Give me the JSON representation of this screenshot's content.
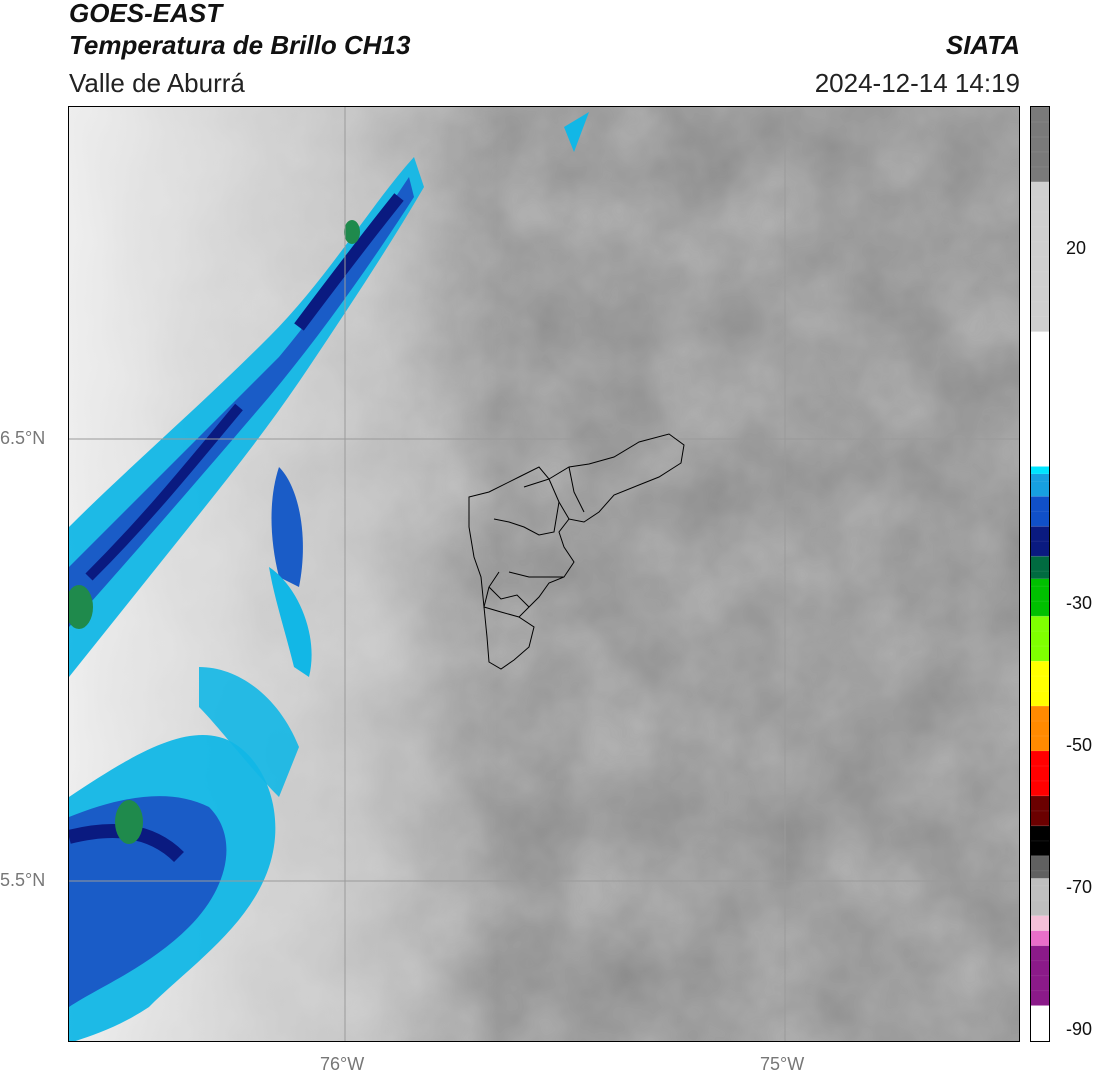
{
  "header": {
    "satellite": "GOES-EAST",
    "product": "Temperatura de Brillo CH13",
    "region": "Valle de Aburrá",
    "agency": "SIATA",
    "timestamp": "2024-12-14 14:19"
  },
  "map": {
    "lat_labels": [
      "6.5°N",
      "5.5°N"
    ],
    "lon_labels": [
      "76°W",
      "75°W"
    ]
  },
  "colorbar": {
    "tick_labels": [
      "20",
      "-30",
      "-50",
      "-70",
      "-90"
    ],
    "stops": [
      {
        "v": -95,
        "color": "#ffffff"
      },
      {
        "v": -90,
        "color": "#8b1a89"
      },
      {
        "v": -82,
        "color": "#e86fc9"
      },
      {
        "v": -80,
        "color": "#f4c0d8"
      },
      {
        "v": -78,
        "color": "#bfbfbf"
      },
      {
        "v": -73,
        "color": "#606060"
      },
      {
        "v": -70,
        "color": "#000000"
      },
      {
        "v": -66,
        "color": "#6b0000"
      },
      {
        "v": -62,
        "color": "#ff0000"
      },
      {
        "v": -56,
        "color": "#ff8a00"
      },
      {
        "v": -50,
        "color": "#ffff00"
      },
      {
        "v": -44,
        "color": "#7fff00"
      },
      {
        "v": -38,
        "color": "#00c000"
      },
      {
        "v": -33,
        "color": "#006b40"
      },
      {
        "v": -30,
        "color": "#0a1a80"
      },
      {
        "v": -26,
        "color": "#1050c8"
      },
      {
        "v": -22,
        "color": "#17a0e0"
      },
      {
        "v": -19,
        "color": "#00e5ff"
      },
      {
        "v": -18,
        "color": "#ffffff"
      },
      {
        "v": 0,
        "color": "#cfcfcf"
      },
      {
        "v": 20,
        "color": "#7a7a7a"
      },
      {
        "v": 30,
        "color": "#101010"
      }
    ]
  }
}
